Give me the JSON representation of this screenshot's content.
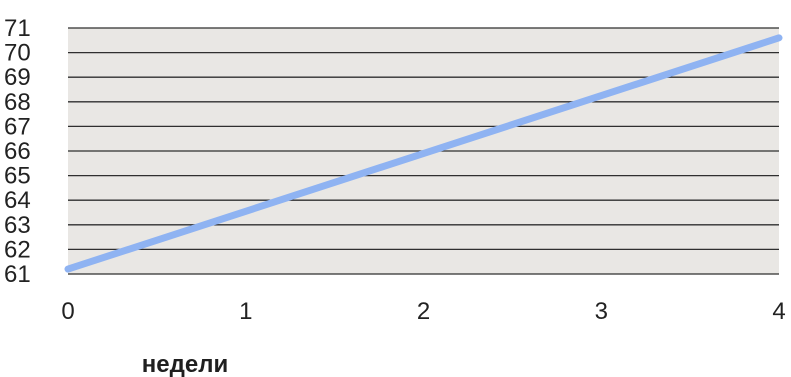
{
  "chart_data": {
    "type": "line",
    "title": "",
    "xlabel": "недели",
    "ylabel": "",
    "x_ticks": [
      "0",
      "1",
      "2",
      "3",
      "4"
    ],
    "y_ticks": [
      "61",
      "62",
      "63",
      "64",
      "65",
      "66",
      "67",
      "68",
      "69",
      "70",
      "71"
    ],
    "xlim": [
      0,
      4
    ],
    "ylim": [
      61,
      71
    ],
    "grid": true,
    "series": [
      {
        "x": [
          0,
          4
        ],
        "y": [
          61.2,
          70.6
        ],
        "color": "#8fb3f2"
      }
    ],
    "colors": {
      "plot_background": "#e9e7e4",
      "grid": "#2f2f2f",
      "series": "#8fb3f2"
    }
  }
}
